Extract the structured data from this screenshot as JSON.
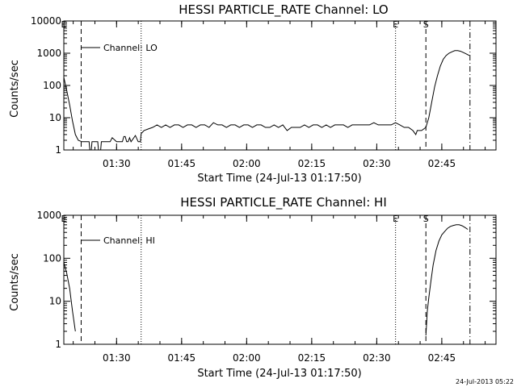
{
  "footer": {
    "timestamp": "24-Jul-2013 05:22"
  },
  "chart_data": [
    {
      "type": "line",
      "title": "HESSI PARTICLE_RATE Channel: LO",
      "xlabel": "Start Time (24-Jul-13 01:17:50)",
      "ylabel": "Counts/sec",
      "yscale": "log",
      "xlim": [
        "01:17:50",
        "02:57:30"
      ],
      "ylim": [
        1,
        10000
      ],
      "x_ticks": [
        "01:30",
        "01:45",
        "02:00",
        "02:15",
        "02:30",
        "02:45"
      ],
      "y_ticks": [
        "1",
        "10",
        "100",
        "1000",
        "10000"
      ],
      "legend": {
        "label": "Channel: LO",
        "position": "top-left"
      },
      "markers": [
        {
          "label": "E",
          "time": "01:17:50",
          "style": "dashed"
        },
        {
          "time": "01:21:50",
          "style": "dashed"
        },
        {
          "time": "01:35:40",
          "style": "dotted"
        },
        {
          "label": "E",
          "time": "02:34:20",
          "style": "dotted"
        },
        {
          "label": "S",
          "time": "02:41:20",
          "style": "dashed"
        },
        {
          "time": "02:51:30",
          "style": "dash-dot"
        }
      ],
      "series": [
        {
          "points": [
            [
              "01:17:50",
              180
            ],
            [
              "01:18:30",
              70
            ],
            [
              "01:19:10",
              25
            ],
            [
              "01:19:50",
              8
            ],
            [
              "01:20:30",
              3
            ],
            [
              "01:21:10",
              2
            ],
            [
              "01:22:00",
              1.8
            ],
            [
              "01:23:00",
              1.8
            ],
            [
              "01:23:40",
              1.8
            ],
            [
              "01:23:50",
              1
            ],
            [
              "01:24:10",
              1
            ],
            [
              "01:24:20",
              1.8
            ],
            [
              "01:25:40",
              1.8
            ],
            [
              "01:25:50",
              1
            ],
            [
              "01:26:20",
              1
            ],
            [
              "01:26:30",
              1.8
            ],
            [
              "01:28:00",
              1.8
            ],
            [
              "01:28:30",
              1.8
            ],
            [
              "01:29:00",
              2.4
            ],
            [
              "01:30:00",
              1.8
            ],
            [
              "01:31:00",
              1.8
            ],
            [
              "01:31:20",
              1.8
            ],
            [
              "01:31:40",
              2.6
            ],
            [
              "01:32:00",
              2.6
            ],
            [
              "01:32:20",
              1.8
            ],
            [
              "01:32:40",
              1.8
            ],
            [
              "01:33:00",
              2.4
            ],
            [
              "01:33:20",
              1.8
            ],
            [
              "01:34:20",
              2.8
            ],
            [
              "01:35:00",
              1.8
            ],
            [
              "01:35:30",
              1.8
            ],
            [
              "01:35:40",
              3.2
            ],
            [
              "01:36:20",
              4
            ],
            [
              "01:37:20",
              4.5
            ],
            [
              "01:38:20",
              5
            ],
            [
              "01:39:20",
              6
            ],
            [
              "01:40:20",
              5
            ],
            [
              "01:41:20",
              6
            ],
            [
              "01:42:20",
              5
            ],
            [
              "01:43:20",
              6
            ],
            [
              "01:44:20",
              6
            ],
            [
              "01:45:20",
              5
            ],
            [
              "01:46:20",
              6
            ],
            [
              "01:47:20",
              6
            ],
            [
              "01:48:20",
              5
            ],
            [
              "01:49:20",
              6
            ],
            [
              "01:50:20",
              6
            ],
            [
              "01:51:20",
              5
            ],
            [
              "01:52:20",
              7
            ],
            [
              "01:53:20",
              6
            ],
            [
              "01:54:20",
              6
            ],
            [
              "01:55:20",
              5
            ],
            [
              "01:56:20",
              6
            ],
            [
              "01:57:20",
              6
            ],
            [
              "01:58:20",
              5
            ],
            [
              "01:59:20",
              6
            ],
            [
              "02:00:20",
              6
            ],
            [
              "02:01:20",
              5
            ],
            [
              "02:02:20",
              6
            ],
            [
              "02:03:20",
              6
            ],
            [
              "02:04:20",
              5
            ],
            [
              "02:05:20",
              5
            ],
            [
              "02:06:20",
              6
            ],
            [
              "02:07:20",
              5
            ],
            [
              "02:08:20",
              6
            ],
            [
              "02:09:20",
              4
            ],
            [
              "02:10:20",
              5
            ],
            [
              "02:11:20",
              5
            ],
            [
              "02:12:20",
              5
            ],
            [
              "02:13:20",
              6
            ],
            [
              "02:14:20",
              5
            ],
            [
              "02:15:20",
              6
            ],
            [
              "02:16:20",
              6
            ],
            [
              "02:17:20",
              5
            ],
            [
              "02:18:20",
              6
            ],
            [
              "02:19:20",
              5
            ],
            [
              "02:20:20",
              6
            ],
            [
              "02:21:20",
              6
            ],
            [
              "02:22:20",
              6
            ],
            [
              "02:23:20",
              5
            ],
            [
              "02:24:20",
              6
            ],
            [
              "02:25:20",
              6
            ],
            [
              "02:26:20",
              6
            ],
            [
              "02:27:20",
              6
            ],
            [
              "02:28:20",
              6
            ],
            [
              "02:29:20",
              7
            ],
            [
              "02:30:20",
              6
            ],
            [
              "02:31:20",
              6
            ],
            [
              "02:32:20",
              6
            ],
            [
              "02:33:20",
              6
            ],
            [
              "02:34:20",
              7
            ],
            [
              "02:35:20",
              6
            ],
            [
              "02:36:20",
              5
            ],
            [
              "02:37:20",
              5
            ],
            [
              "02:38:20",
              4
            ],
            [
              "02:39:00",
              3
            ],
            [
              "02:39:20",
              4
            ],
            [
              "02:40:20",
              4
            ],
            [
              "02:41:20",
              5
            ],
            [
              "02:42:00",
              10
            ],
            [
              "02:42:40",
              30
            ],
            [
              "02:43:20",
              90
            ],
            [
              "02:44:00",
              200
            ],
            [
              "02:44:40",
              400
            ],
            [
              "02:45:20",
              650
            ],
            [
              "02:46:00",
              850
            ],
            [
              "02:46:40",
              1000
            ],
            [
              "02:47:20",
              1100
            ],
            [
              "02:48:00",
              1200
            ],
            [
              "02:48:40",
              1200
            ],
            [
              "02:49:20",
              1150
            ],
            [
              "02:50:00",
              1050
            ],
            [
              "02:50:40",
              950
            ],
            [
              "02:51:20",
              850
            ]
          ]
        }
      ]
    },
    {
      "type": "line",
      "title": "HESSI PARTICLE_RATE Channel: HI",
      "xlabel": "Start Time (24-Jul-13 01:17:50)",
      "ylabel": "Counts/sec",
      "yscale": "log",
      "xlim": [
        "01:17:50",
        "02:57:30"
      ],
      "ylim": [
        1,
        1000
      ],
      "x_ticks": [
        "01:30",
        "01:45",
        "02:00",
        "02:15",
        "02:30",
        "02:45"
      ],
      "y_ticks": [
        "1",
        "10",
        "100",
        "1000"
      ],
      "legend": {
        "label": "Channel: HI",
        "position": "top-left"
      },
      "markers": [
        {
          "label": "E",
          "time": "01:17:50",
          "style": "dashed"
        },
        {
          "time": "01:21:50",
          "style": "dashed"
        },
        {
          "time": "01:35:40",
          "style": "dotted"
        },
        {
          "label": "E",
          "time": "02:34:20",
          "style": "dotted"
        },
        {
          "label": "S",
          "time": "02:41:20",
          "style": "dashed"
        },
        {
          "time": "02:51:30",
          "style": "dash-dot"
        }
      ],
      "series": [
        {
          "segments": [
            [
              [
                "01:17:50",
                80
              ],
              [
                "01:18:30",
                45
              ],
              [
                "01:19:10",
                20
              ],
              [
                "01:19:50",
                6
              ],
              [
                "01:20:30",
                2
              ]
            ],
            [
              [
                "02:41:20",
                1.6
              ],
              [
                "02:41:40",
                6
              ],
              [
                "02:42:00",
                12
              ],
              [
                "02:42:30",
                30
              ],
              [
                "02:43:00",
                70
              ],
              [
                "02:43:40",
                150
              ],
              [
                "02:44:20",
                250
              ],
              [
                "02:45:00",
                350
              ],
              [
                "02:45:40",
                420
              ],
              [
                "02:46:20",
                500
              ],
              [
                "02:47:00",
                550
              ],
              [
                "02:47:40",
                580
              ],
              [
                "02:48:20",
                600
              ],
              [
                "02:49:00",
                600
              ],
              [
                "02:49:40",
                570
              ],
              [
                "02:50:20",
                520
              ],
              [
                "02:51:00",
                470
              ]
            ]
          ]
        }
      ]
    }
  ]
}
